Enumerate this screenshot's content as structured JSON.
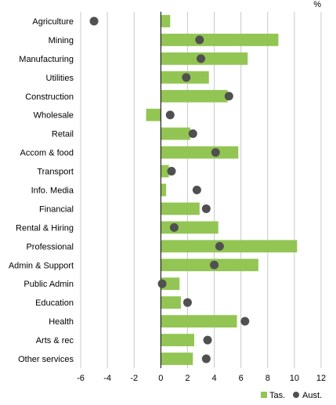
{
  "chart_data": {
    "type": "bar",
    "orientation": "horizontal",
    "unit_label": "%",
    "categories": [
      "Agriculture",
      "Mining",
      "Manufacturing",
      "Utilities",
      "Construction",
      "Wholesale",
      "Retail",
      "Accom & food",
      "Transport",
      "Info. Media",
      "Financial",
      "Rental & Hiring",
      "Professional",
      "Admin & Support",
      "Public Admin",
      "Education",
      "Health",
      "Arts & rec",
      "Other services"
    ],
    "series": [
      {
        "name": "Tas.",
        "mark": "bar",
        "color": "#92C553",
        "values": [
          0.7,
          8.8,
          6.5,
          3.6,
          5.0,
          -1.1,
          2.2,
          5.8,
          0.6,
          0.4,
          2.9,
          4.3,
          10.2,
          7.3,
          1.4,
          1.5,
          5.7,
          2.5,
          2.4
        ]
      },
      {
        "name": "Aust.",
        "mark": "dot",
        "color": "#505050",
        "values": [
          -5.0,
          2.9,
          3.0,
          1.9,
          5.1,
          0.7,
          2.4,
          4.1,
          0.8,
          2.7,
          3.4,
          1.0,
          4.4,
          4.0,
          0.1,
          2.0,
          6.3,
          3.5,
          3.4
        ]
      }
    ],
    "xlim": [
      -6,
      12
    ],
    "xticks": [
      "-6",
      "-4",
      "-2",
      "0",
      "2",
      "4",
      "6",
      "8",
      "10",
      "12"
    ],
    "legend_position": "bottom-right",
    "grid": "vertical"
  }
}
